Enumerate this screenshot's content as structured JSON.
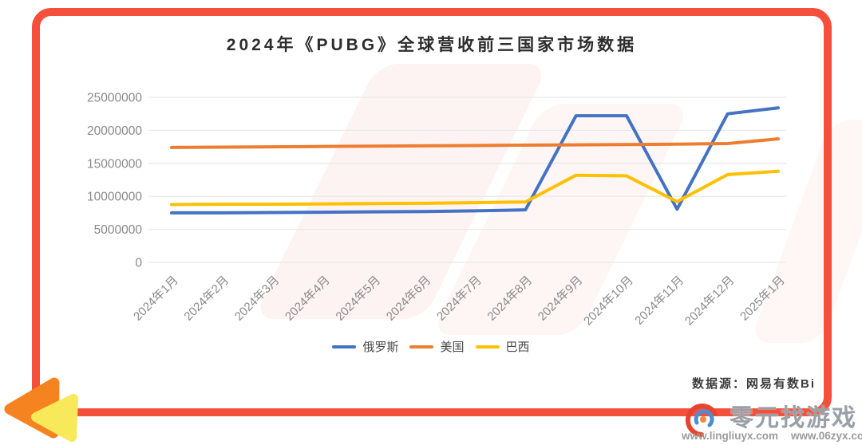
{
  "title": "2024年《PUBG》全球营收前三国家市场数据",
  "source_note": "数据源：网易有数Bi",
  "watermark": {
    "brand": "零元找游戏",
    "url_left": "www.lingliuyx.com",
    "url_right": "www.06zyx.com"
  },
  "colors": {
    "frame": "#f4503c",
    "arrow_orange": "#f5831f",
    "arrow_yellow": "#f8e95b",
    "grid": "#e9e9e9",
    "axis_text": "#8a8a8a",
    "title_text": "#2d2d2d",
    "legend_text": "#4a4a4a",
    "watermark_text": "#99a0a7"
  },
  "chart_data": {
    "type": "line",
    "title": "2024年《PUBG》全球营收前三国家市场数据",
    "categories": [
      "2024年1月",
      "2024年2月",
      "2024年3月",
      "2024年4月",
      "2024年5月",
      "2024年6月",
      "2024年7月",
      "2024年8月",
      "2024年9月",
      "2024年10月",
      "2024年11月",
      "2024年12月",
      "2025年1月"
    ],
    "series": [
      {
        "name": "俄罗斯",
        "color": "#4472c4",
        "values": [
          7500000,
          7500000,
          7550000,
          7600000,
          7650000,
          7700000,
          7800000,
          7950000,
          22200000,
          22200000,
          8050000,
          22500000,
          23400000
        ]
      },
      {
        "name": "美国",
        "color": "#ed7d31",
        "values": [
          17400000,
          17450000,
          17500000,
          17550000,
          17600000,
          17650000,
          17700000,
          17750000,
          17800000,
          17850000,
          17900000,
          18000000,
          18700000
        ]
      },
      {
        "name": "巴西",
        "color": "#ffc000",
        "values": [
          8750000,
          8800000,
          8800000,
          8850000,
          8900000,
          8950000,
          9050000,
          9150000,
          13200000,
          13100000,
          9200000,
          13300000,
          13800000
        ]
      }
    ],
    "xlabel": "",
    "ylabel": "",
    "ylim": [
      0,
      25000000
    ],
    "yticks": [
      0,
      5000000,
      10000000,
      15000000,
      20000000,
      25000000
    ],
    "grid": true,
    "legend_position": "bottom"
  }
}
